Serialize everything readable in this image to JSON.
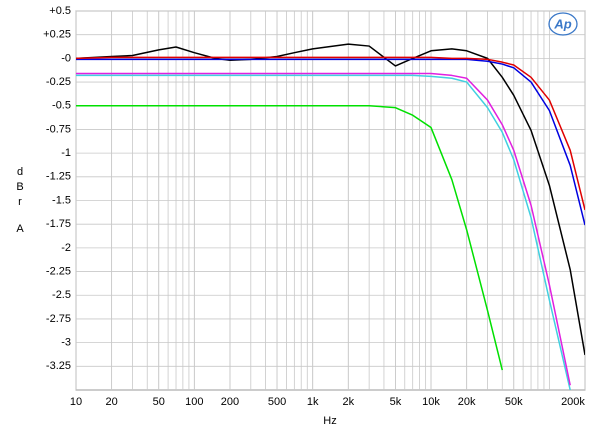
{
  "chart_data": {
    "type": "line",
    "logo": "Ap",
    "xlabel": "Hz",
    "ylabel": [
      "d",
      "B",
      "r",
      "A"
    ],
    "xlog": true,
    "grid": true,
    "xlim": [
      10,
      200000
    ],
    "ylim": [
      -3.5,
      0.5
    ],
    "xticks": [
      10,
      20,
      50,
      100,
      200,
      500,
      {
        "value": 1000,
        "label": "1k"
      },
      {
        "value": 2000,
        "label": "2k"
      },
      {
        "value": 5000,
        "label": "5k"
      },
      {
        "value": 10000,
        "label": "10k"
      },
      {
        "value": 20000,
        "label": "20k"
      },
      {
        "value": 50000,
        "label": "50k"
      },
      {
        "value": 200000,
        "label": "200k"
      }
    ],
    "yticks": [
      {
        "value": 0.5,
        "label": "+0.5"
      },
      {
        "value": 0.25,
        "label": "+0.25"
      },
      {
        "value": 0,
        "label": "-0"
      },
      -0.25,
      -0.5,
      -0.75,
      -1,
      -1.25,
      -1.5,
      -1.75,
      -2,
      -2.25,
      -2.5,
      -2.75,
      -3,
      -3.25
    ],
    "x": [
      10,
      20,
      30,
      50,
      70,
      100,
      150,
      200,
      300,
      500,
      700,
      1000,
      2000,
      3000,
      5000,
      7000,
      10000,
      15000,
      20000,
      30000,
      40000,
      50000,
      70000,
      100000,
      150000,
      200000
    ],
    "series": [
      {
        "color": "#00e000",
        "values": [
          -0.5,
          -0.5,
          -0.5,
          -0.5,
          -0.5,
          -0.5,
          -0.5,
          -0.5,
          -0.5,
          -0.5,
          -0.5,
          -0.5,
          -0.5,
          -0.5,
          -0.52,
          -0.6,
          -0.73,
          -1.28,
          -1.81,
          -2.66,
          -3.29,
          null,
          null,
          null,
          null,
          null
        ]
      },
      {
        "color": "#40d0e0",
        "values": [
          -0.18,
          -0.18,
          -0.18,
          -0.18,
          -0.18,
          -0.18,
          -0.18,
          -0.18,
          -0.18,
          -0.18,
          -0.18,
          -0.18,
          -0.18,
          -0.18,
          -0.18,
          -0.18,
          -0.19,
          -0.21,
          -0.25,
          -0.52,
          -0.78,
          -1.07,
          -1.68,
          -2.55,
          -3.5,
          null
        ]
      },
      {
        "color": "#e020e0",
        "values": [
          -0.16,
          -0.16,
          -0.16,
          -0.16,
          -0.16,
          -0.16,
          -0.16,
          -0.16,
          -0.16,
          -0.16,
          -0.16,
          -0.16,
          -0.16,
          -0.16,
          -0.16,
          -0.16,
          -0.16,
          -0.18,
          -0.21,
          -0.44,
          -0.7,
          -0.97,
          -1.55,
          -2.39,
          -3.45,
          null
        ]
      },
      {
        "color": "#000000",
        "values": [
          0,
          0.02,
          0.03,
          0.09,
          0.12,
          0.06,
          0.0,
          -0.02,
          -0.01,
          0.02,
          0.06,
          0.1,
          0.15,
          0.13,
          -0.08,
          0.0,
          0.08,
          0.1,
          0.08,
          0.0,
          -0.2,
          -0.39,
          -0.76,
          -1.34,
          -2.23,
          -3.13
        ]
      },
      {
        "color": "#0000e0",
        "values": [
          -0.01,
          -0.01,
          -0.01,
          -0.01,
          -0.01,
          -0.01,
          -0.01,
          -0.01,
          -0.01,
          -0.01,
          -0.01,
          -0.01,
          -0.01,
          -0.01,
          -0.01,
          -0.01,
          -0.01,
          -0.01,
          -0.01,
          -0.03,
          -0.06,
          -0.1,
          -0.25,
          -0.55,
          -1.13,
          -1.76
        ]
      },
      {
        "color": "#e00000",
        "values": [
          0.0,
          0.01,
          0.01,
          0.01,
          0.01,
          0.01,
          0.01,
          0.01,
          0.01,
          0.01,
          0.01,
          0.01,
          0.01,
          0.01,
          0.01,
          0.01,
          0.01,
          0.0,
          0.0,
          -0.01,
          -0.04,
          -0.07,
          -0.2,
          -0.44,
          -0.97,
          -1.6
        ]
      }
    ]
  }
}
